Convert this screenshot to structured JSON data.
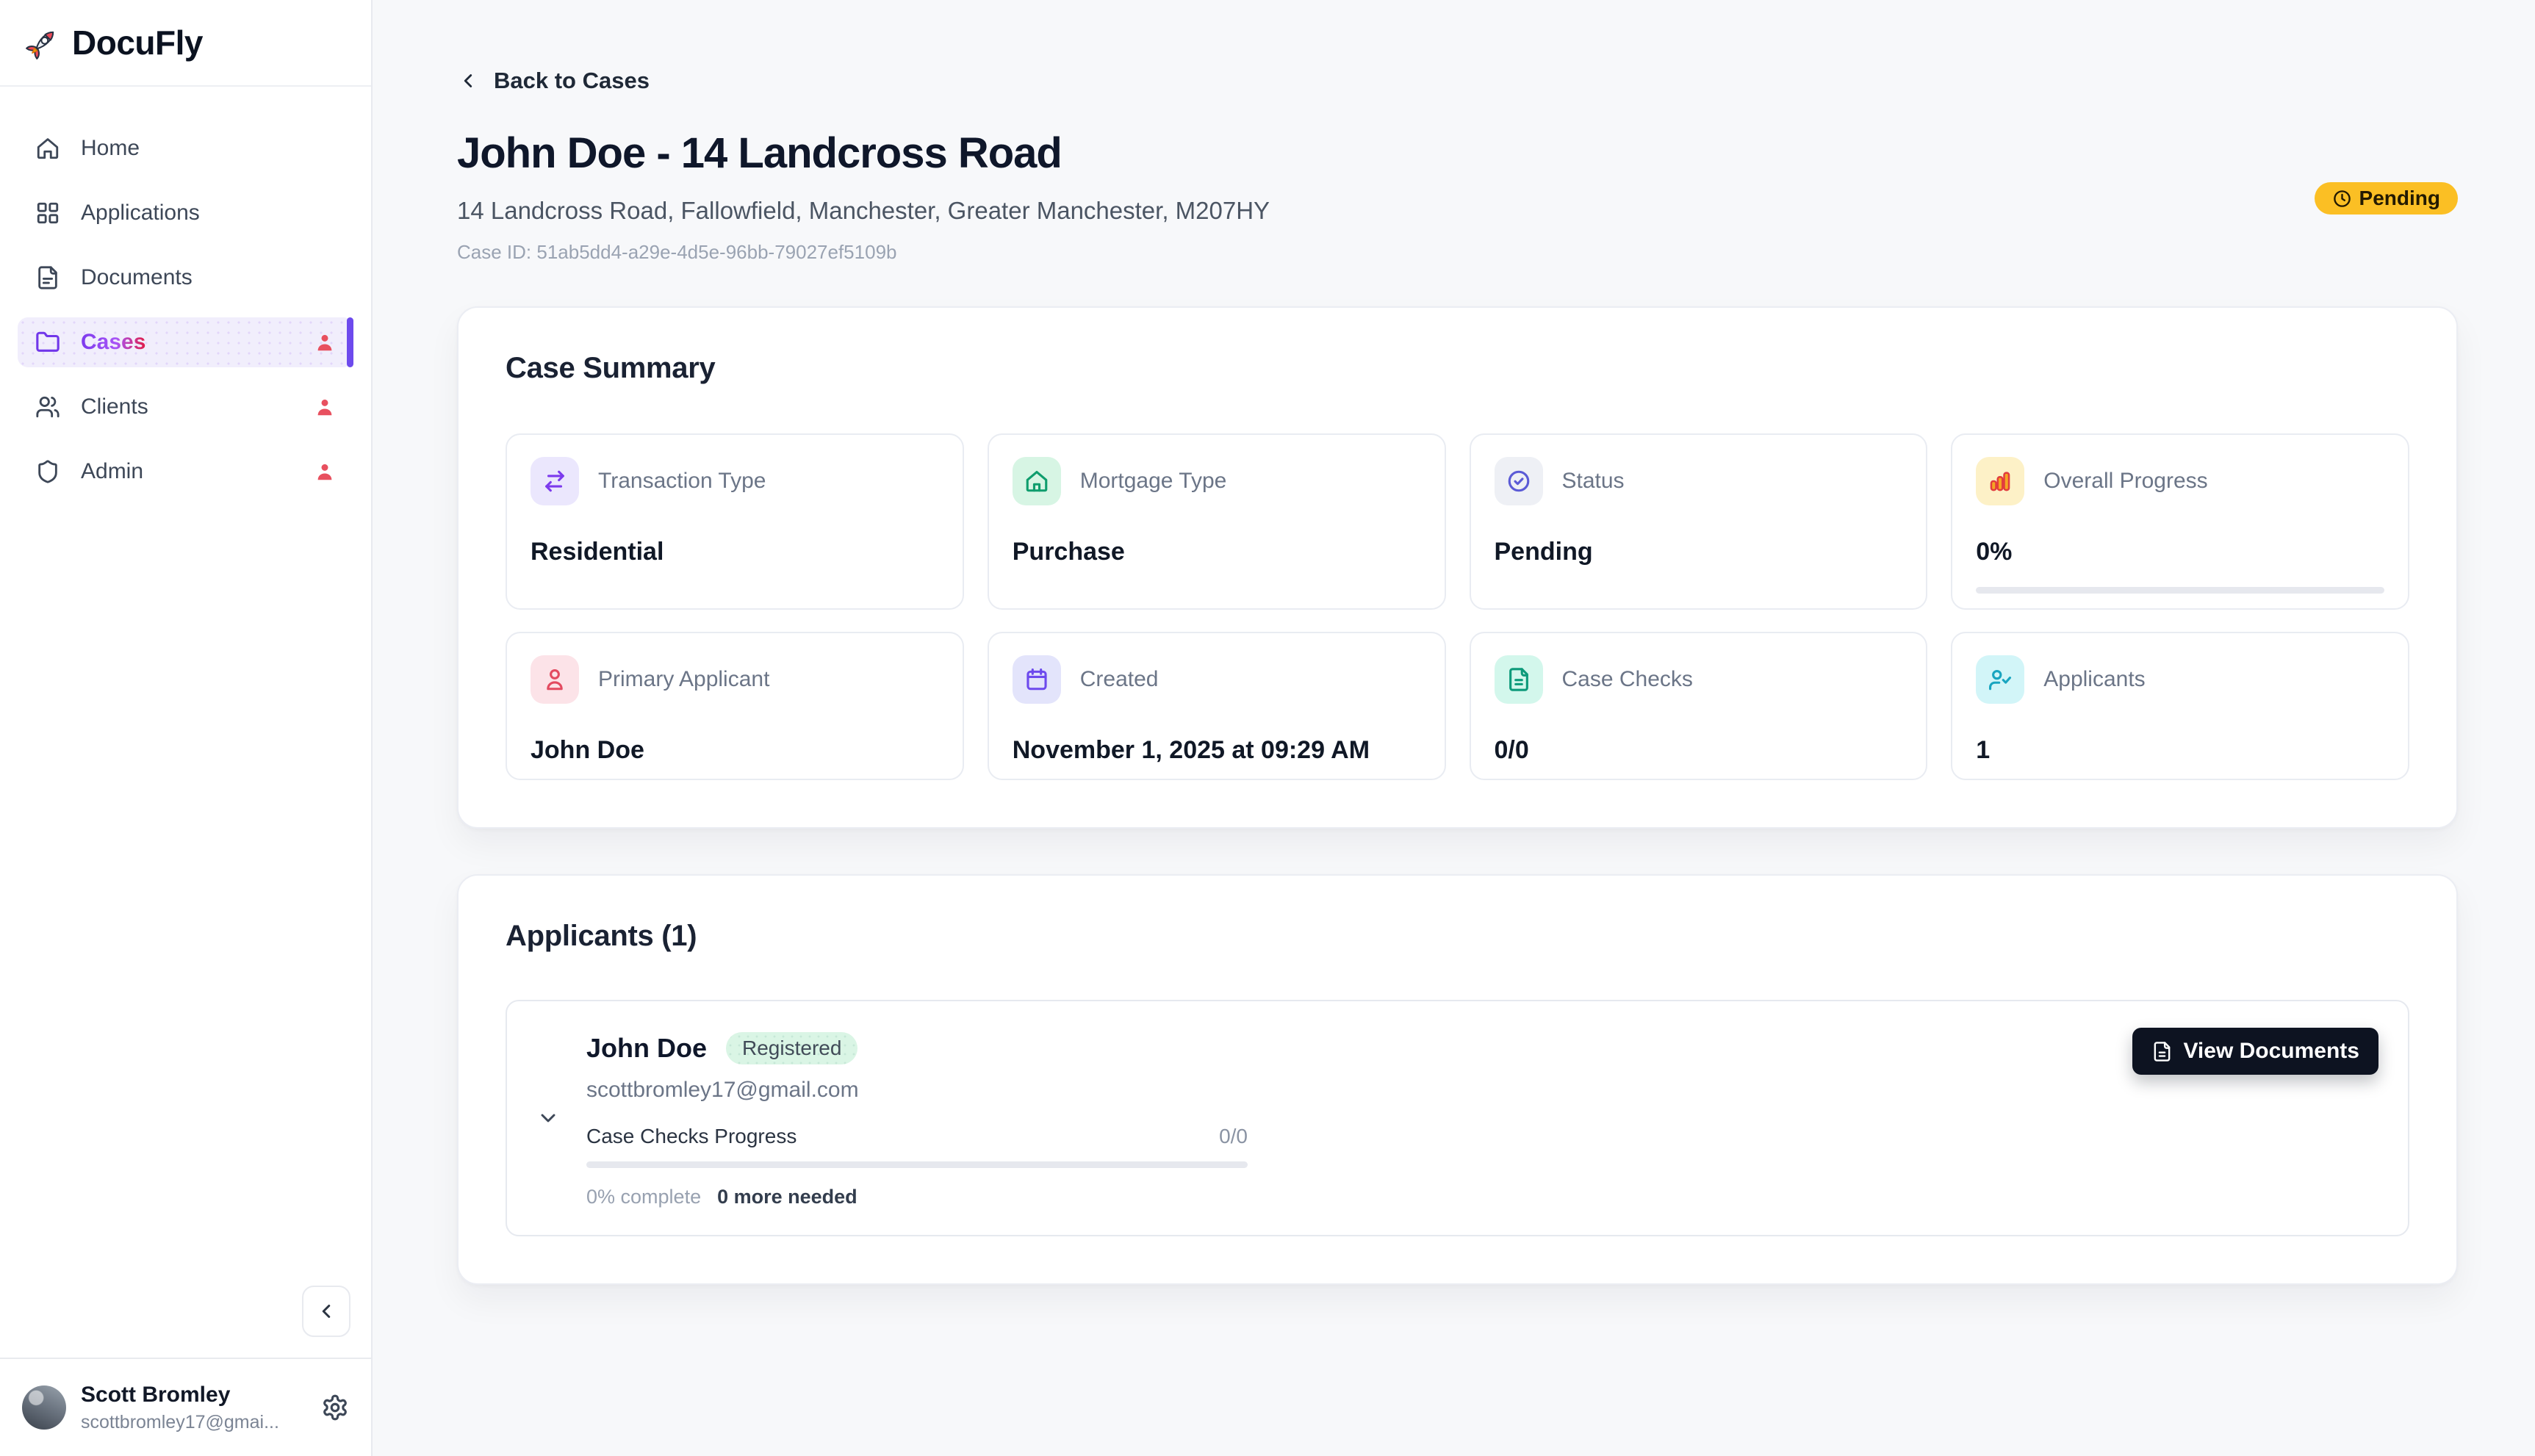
{
  "app": {
    "name": "DocuFly"
  },
  "sidebar": {
    "items": [
      {
        "label": "Home",
        "active": false,
        "badge": false
      },
      {
        "label": "Applications",
        "active": false,
        "badge": false
      },
      {
        "label": "Documents",
        "active": false,
        "badge": false
      },
      {
        "label": "Cases",
        "active": true,
        "badge": true
      },
      {
        "label": "Clients",
        "active": false,
        "badge": true
      },
      {
        "label": "Admin",
        "active": false,
        "badge": true
      }
    ],
    "user": {
      "name": "Scott Bromley",
      "email": "scottbromley17@gmai..."
    }
  },
  "header": {
    "back_label": "Back to Cases",
    "title": "John Doe - 14 Landcross Road",
    "address": "14 Landcross Road, Fallowfield, Manchester, Greater Manchester, M207HY",
    "case_id": "Case ID: 51ab5dd4-a29e-4d5e-96bb-79027ef5109b",
    "status_badge": "Pending"
  },
  "summary": {
    "title": "Case Summary",
    "cards": [
      {
        "label": "Transaction Type",
        "value": "Residential"
      },
      {
        "label": "Mortgage Type",
        "value": "Purchase"
      },
      {
        "label": "Status",
        "value": "Pending"
      },
      {
        "label": "Overall Progress",
        "value": "0%",
        "progress_percent": 0
      },
      {
        "label": "Primary Applicant",
        "value": "John Doe"
      },
      {
        "label": "Created",
        "value": "November 1, 2025 at 09:29 AM"
      },
      {
        "label": "Case Checks",
        "value": "0/0"
      },
      {
        "label": "Applicants",
        "value": "1"
      }
    ]
  },
  "applicants": {
    "title": "Applicants (1)",
    "rows": [
      {
        "name": "John Doe",
        "badge": "Registered",
        "email": "scottbromley17@gmail.com",
        "progress_label": "Case Checks Progress",
        "progress_value": "0/0",
        "progress_percent": 0,
        "complete_text": "0% complete",
        "needed_text": "0 more needed",
        "action_label": "View Documents"
      }
    ]
  },
  "colors": {
    "accent_violet": "#6d4aed",
    "status_amber": "#fbbf24",
    "badge_red": "#e8505f",
    "registered_green_bg": "#daf5e5",
    "button_dark": "#0d1321",
    "page_bg": "#f7f8fa"
  }
}
